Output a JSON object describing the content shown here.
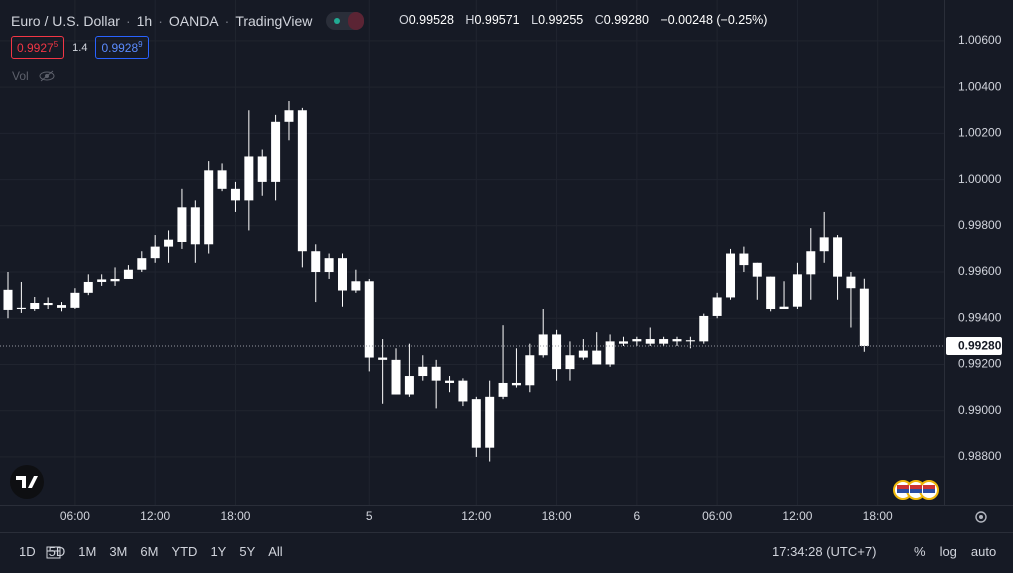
{
  "header": {
    "title_parts": [
      "Euro / U.S. Dollar",
      "1h",
      "OANDA",
      "TradingView"
    ],
    "ohlc": [
      {
        "key": "O",
        "value": "0.99528"
      },
      {
        "key": "H",
        "value": "0.99571"
      },
      {
        "key": "L",
        "value": "0.99255"
      },
      {
        "key": "C",
        "value": "0.99280"
      }
    ],
    "change": "−0.00248 (−0.25%)"
  },
  "quote": {
    "sell": {
      "main": "0.9927",
      "pip": "5"
    },
    "spread": "1.4",
    "buy": {
      "main": "0.9928",
      "pip": "9"
    },
    "volume_label": "Vol"
  },
  "chart_data": {
    "type": "candlestick",
    "categories": [
      null,
      null,
      null,
      null,
      null,
      "06:00",
      null,
      null,
      null,
      null,
      null,
      "12:00",
      null,
      null,
      null,
      null,
      null,
      "18:00",
      null,
      null,
      null,
      null,
      null,
      null,
      null,
      null,
      null,
      "5",
      null,
      null,
      null,
      null,
      null,
      null,
      null,
      "12:00",
      null,
      null,
      null,
      null,
      null,
      "18:00",
      null,
      null,
      null,
      null,
      null,
      "6",
      null,
      null,
      null,
      null,
      null,
      "06:00",
      null,
      null,
      null,
      null,
      null,
      "12:00",
      null,
      null,
      null,
      null,
      null,
      "18:00"
    ],
    "open": [
      0.99523,
      0.99445,
      0.9944,
      0.99466,
      0.99457,
      0.99445,
      0.9951,
      0.99557,
      0.9956,
      0.9957,
      0.9961,
      0.9966,
      0.9971,
      0.9973,
      0.9988,
      0.9972,
      1.0004,
      0.9996,
      0.9991,
      1.001,
      0.9999,
      1.0025,
      1.003,
      0.9969,
      0.996,
      0.9966,
      0.9952,
      0.9956,
      0.9923,
      0.9922,
      0.9907,
      0.9915,
      0.9919,
      0.9913,
      0.9913,
      0.9905,
      0.9884,
      0.9906,
      0.9912,
      0.9911,
      0.9924,
      0.9933,
      0.9918,
      0.9923,
      0.9926,
      0.992,
      0.9929,
      0.993,
      0.9931,
      0.9929,
      0.9931,
      0.993,
      0.993,
      0.9941,
      0.9949,
      0.9968,
      0.9964,
      0.9958,
      0.9945,
      0.9945,
      0.9959,
      0.9969,
      0.9975,
      0.9958,
      0.99528,
      null
    ],
    "high": [
      0.996,
      0.99557,
      0.99492,
      0.9949,
      0.9947,
      0.9953,
      0.9959,
      0.9959,
      0.9962,
      0.9963,
      0.9969,
      0.9976,
      0.9978,
      0.9996,
      0.9991,
      1.0008,
      1.0007,
      0.9999,
      1.003,
      1.0013,
      1.0028,
      1.0034,
      1.0031,
      0.9972,
      0.9968,
      0.9968,
      0.9961,
      0.9957,
      0.9931,
      0.9927,
      0.9929,
      0.9924,
      0.9922,
      0.9915,
      0.9914,
      0.9906,
      0.9913,
      0.9937,
      0.9927,
      0.9929,
      0.9944,
      0.9935,
      0.993,
      0.9931,
      0.9934,
      0.9933,
      0.9932,
      0.9932,
      0.9936,
      0.9932,
      0.9932,
      0.9932,
      0.9942,
      0.9951,
      0.997,
      0.9971,
      0.9964,
      0.9958,
      0.9956,
      0.9964,
      0.9979,
      0.9986,
      0.9976,
      0.996,
      0.99571,
      null
    ],
    "low": [
      0.994,
      0.99423,
      0.99432,
      0.9944,
      0.9943,
      0.9944,
      0.995,
      0.9954,
      0.9954,
      0.9957,
      0.996,
      0.9964,
      0.9964,
      0.997,
      0.9964,
      0.9968,
      0.9995,
      0.9986,
      0.9978,
      0.9993,
      0.9991,
      1.0017,
      0.9962,
      0.9947,
      0.9957,
      0.9945,
      0.9951,
      0.9917,
      0.9903,
      0.9907,
      0.9906,
      0.9913,
      0.9901,
      0.9908,
      0.9902,
      0.988,
      0.9878,
      0.9905,
      0.991,
      0.9908,
      0.9923,
      0.9913,
      0.9913,
      0.9922,
      0.992,
      0.9919,
      0.9928,
      0.9928,
      0.9928,
      0.9928,
      0.9928,
      0.9927,
      0.9929,
      0.994,
      0.9948,
      0.996,
      0.9948,
      0.9943,
      0.9944,
      0.9944,
      0.9948,
      0.9964,
      0.9948,
      0.9936,
      0.99255,
      null
    ],
    "close": [
      0.99436,
      0.9944,
      0.99466,
      0.99457,
      0.99445,
      0.9951,
      0.99557,
      0.99568,
      0.9957,
      0.9961,
      0.9966,
      0.9971,
      0.9974,
      0.9988,
      0.9972,
      1.0004,
      0.9996,
      0.9991,
      1.001,
      0.9999,
      1.0025,
      1.003,
      0.9969,
      0.996,
      0.9966,
      0.9952,
      0.9956,
      0.9923,
      0.9922,
      0.9907,
      0.9915,
      0.9919,
      0.9913,
      0.9912,
      0.9904,
      0.9884,
      0.9906,
      0.9912,
      0.9911,
      0.9924,
      0.9933,
      0.9918,
      0.9924,
      0.9926,
      0.992,
      0.993,
      0.993,
      0.9931,
      0.9929,
      0.9931,
      0.993,
      0.99305,
      0.9941,
      0.9949,
      0.9968,
      0.9963,
      0.9958,
      0.9944,
      0.9944,
      0.9959,
      0.9969,
      0.9975,
      0.9958,
      0.9953,
      0.9928,
      null
    ],
    "up_color": "#ffffff",
    "down_color": "#ffffff",
    "grid": true,
    "ylim": [
      0.98592,
      1.00777
    ],
    "yticks": [
      {
        "value": 1.006,
        "label": "1.00600"
      },
      {
        "value": 1.004,
        "label": "1.00400"
      },
      {
        "value": 1.002,
        "label": "1.00200"
      },
      {
        "value": 1.0,
        "label": "1.00000"
      },
      {
        "value": 0.998,
        "label": "0.99800"
      },
      {
        "value": 0.996,
        "label": "0.99600"
      },
      {
        "value": 0.994,
        "label": "0.99400"
      },
      {
        "value": 0.992,
        "label": "0.99200"
      },
      {
        "value": 0.99,
        "label": "0.99000"
      },
      {
        "value": 0.988,
        "label": "0.98800"
      }
    ],
    "last_price": {
      "value": 0.9928,
      "label": "0.99280"
    }
  },
  "toolbar": {
    "ranges": [
      "1D",
      "5D",
      "1M",
      "3M",
      "6M",
      "YTD",
      "1Y",
      "5Y",
      "All"
    ],
    "clock": "17:34:28 (UTC+7)",
    "options": [
      "%",
      "log",
      "auto"
    ]
  }
}
